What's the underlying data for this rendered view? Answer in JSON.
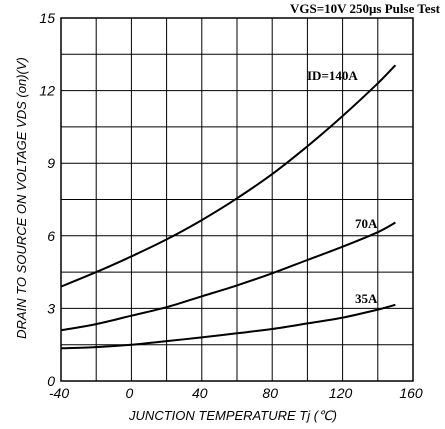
{
  "chart_data": {
    "type": "line",
    "title": "VGS=10V 250μs Pulse Test",
    "xlabel": "JUNCTION TEMPERATURE Tj (℃)",
    "ylabel": "DRAIN TO SOURCE ON VOLTAGE VDS (on)(V)",
    "xlim": [
      -40,
      160
    ],
    "ylim": [
      0,
      15
    ],
    "xticks": [
      -40,
      0,
      40,
      80,
      120,
      160
    ],
    "yticks": [
      0,
      3,
      6,
      9,
      12,
      15
    ],
    "x_tick_labels": [
      "-40",
      "0",
      "40",
      "80",
      "120",
      "160"
    ],
    "y_tick_labels": [
      "0",
      "3",
      "6",
      "9",
      "12",
      "15"
    ],
    "grid": true,
    "series": [
      {
        "name": "ID=140A",
        "x": [
          -40,
          -20,
          0,
          20,
          40,
          60,
          80,
          100,
          120,
          140,
          150
        ],
        "y": [
          3.9,
          4.5,
          5.15,
          5.85,
          6.65,
          7.55,
          8.55,
          9.7,
          10.95,
          12.3,
          13.05
        ]
      },
      {
        "name": "70A",
        "x": [
          -40,
          -20,
          0,
          20,
          40,
          60,
          80,
          100,
          120,
          140,
          150
        ],
        "y": [
          2.1,
          2.35,
          2.7,
          3.05,
          3.5,
          3.95,
          4.45,
          5.0,
          5.55,
          6.15,
          6.55
        ]
      },
      {
        "name": "35A",
        "x": [
          -40,
          -20,
          0,
          20,
          40,
          60,
          80,
          100,
          120,
          140,
          150
        ],
        "y": [
          1.35,
          1.4,
          1.5,
          1.65,
          1.8,
          1.97,
          2.15,
          2.38,
          2.62,
          2.95,
          3.15
        ]
      }
    ],
    "series_label_text": [
      "ID=140A",
      "70A",
      "35A"
    ]
  }
}
